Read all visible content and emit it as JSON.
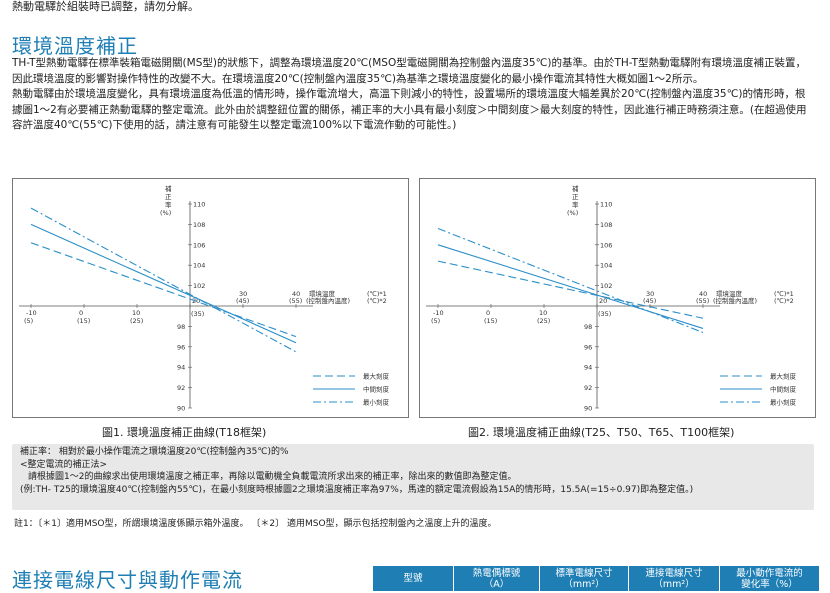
{
  "top_note": "熱動電驛於組裝時已調整，請勿分解。",
  "section1": {
    "title": "環境溫度補正",
    "para1": "TH-T型熱動電驛在標準裝箱電磁開關(MS型)的狀態下，調整為環境溫度20℃(MSO型電磁開關為控制盤內溫度35℃)的基準。由於TH-T型熱動電驛附有環境溫度補正裝置，因此環境溫度的影響對操作特性的改變不大。在環境溫度20℃(控制盤內溫度35℃)為基準之環境溫度變化的最小操作電流其特性大概如圖1～2所示。",
    "para2": "熱動電驛由於環境溫度變化，具有環境溫度為低溫的情形時，操作電流增大，高溫下則減小的特性，設置場所的環境溫度大幅差異於20℃(控制盤內溫度35℃)的情形時，根據圖1～2有必要補正熱動電驛的整定電流。此外由於調整鈕位置的關係，補正率的大小具有最小刻度＞中間刻度＞最大刻度的特性，因此進行補正時務須注意。(在超過使用容許溫度40℃(55℃)下使用的話，請注意有可能發生以整定電流100%以下電流作動的可能性。)"
  },
  "chart_data": [
    {
      "type": "line",
      "title": "圖1. 環境溫度補正曲線(T18框架)",
      "ylabel": "補正率(%)",
      "xlabel": "環境溫度(控制盤內溫度)",
      "x_unit_labels": [
        "(℃)*1",
        "(℃)*2"
      ],
      "x_ticks": [
        "-10",
        "0",
        "10",
        "20",
        "30",
        "40"
      ],
      "x_ticks_alt": [
        "(5)",
        "(15)",
        "(25)",
        "(35)",
        "(45)",
        "(55)"
      ],
      "y_ticks": [
        "110",
        "108",
        "106",
        "104",
        "102",
        "98",
        "96",
        "94",
        "92",
        "90"
      ],
      "ylim": [
        90,
        110
      ],
      "xlim": [
        -10,
        40
      ],
      "series": [
        {
          "name": "最大刻度",
          "style": "dash",
          "x": [
            -10,
            40
          ],
          "y": [
            106.2,
            97.0
          ]
        },
        {
          "name": "中間刻度",
          "style": "solid",
          "x": [
            -10,
            40
          ],
          "y": [
            108.0,
            96.4
          ]
        },
        {
          "name": "最小刻度",
          "style": "dashdot",
          "x": [
            -10,
            40
          ],
          "y": [
            109.6,
            95.5
          ]
        }
      ]
    },
    {
      "type": "line",
      "title": "圖2. 環境溫度補正曲線(T25、T50、T65、T100框架)",
      "ylabel": "補正率(%)",
      "xlabel": "環境溫度(控制盤內溫度)",
      "x_unit_labels": [
        "(℃)*1",
        "(℃)*2"
      ],
      "x_ticks": [
        "-10",
        "0",
        "10",
        "20",
        "30",
        "40"
      ],
      "x_ticks_alt": [
        "(5)",
        "(15)",
        "(25)",
        "(35)",
        "(45)",
        "(55)"
      ],
      "y_ticks": [
        "110",
        "108",
        "106",
        "104",
        "102",
        "98",
        "96",
        "94",
        "92",
        "90"
      ],
      "ylim": [
        90,
        110
      ],
      "xlim": [
        -10,
        40
      ],
      "series": [
        {
          "name": "最大刻度",
          "style": "dash",
          "x": [
            -10,
            40
          ],
          "y": [
            104.4,
            98.8
          ]
        },
        {
          "name": "中間刻度",
          "style": "solid",
          "x": [
            -10,
            40
          ],
          "y": [
            106.0,
            97.8
          ]
        },
        {
          "name": "最小刻度",
          "style": "dashdot",
          "x": [
            -10,
            40
          ],
          "y": [
            107.6,
            97.4
          ]
        }
      ]
    }
  ],
  "notes": {
    "line1": "補正率：  相對於最小操作電流之環境溫度20℃(控制盤內35℃)的%",
    "line2": "<整定電流的補正法>",
    "line3": "請根據圖1～2的曲線求出使用環境溫度之補正率，再除以電動機全負載電流所求出來的補正率，除出來的數值即為整定值。",
    "line4": "(例:TH- T25的環境溫度40℃(控制盤內55℃)，在最小刻度時根據圖2之環境溫度補正率為97%，馬達的額定電流假設為15A的情形時，15.5A(=15÷0.97)即為整定值。)"
  },
  "footnote": "註1：〔＊1〕適用MSO型，所謂環境溫度係顯示箱外溫度。    〔＊2〕 適用MSO型，顯示包括控制盤內之溫度上升的溫度。",
  "section2": {
    "title": "連接電線尺寸與動作電流",
    "table_headers": [
      [
        "型號"
      ],
      [
        "熱電偶標號",
        "（A）"
      ],
      [
        "標準電線尺寸",
        "（mm²）"
      ],
      [
        "連接電線尺寸",
        "（mm²）"
      ],
      [
        "最小動作電流的",
        "變化率（%）"
      ]
    ]
  },
  "colors": {
    "accent": "#1f7fb5",
    "line": "#2b8fc9",
    "note_bg": "#e8e8e8"
  }
}
